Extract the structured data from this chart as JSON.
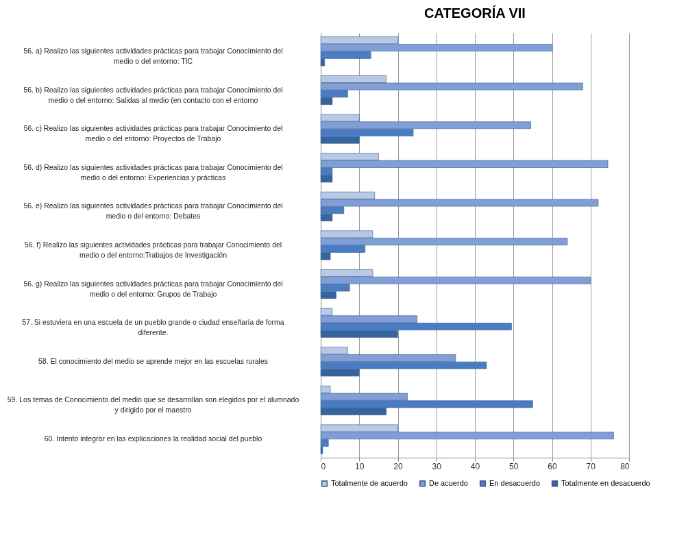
{
  "chart_data": {
    "type": "bar",
    "orientation": "horizontal",
    "title": "CATEGORÍA VII",
    "categories": [
      "56. a) Realizo las siguientes actividades prácticas para trabajar Conocimiento del medio o del entorno: TIC",
      "56. b) Realizo las siguientes actividades prácticas para trabajar Conocimiento del medio o del entorno: Salidas al medio (en contacto con el entorno",
      "56. c) Realizo las siguientes actividades prácticas para trabajar Conocimiento del medio o del entorno: Proyectos de Trabajo",
      "56. d) Realizo las siguientes actividades prácticas para trabajar Conocimiento del medio o del entorno: Experiencias y prácticas",
      "56. e) Realizo las siguientes actividades prácticas para trabajar Conocimiento del medio o del entorno: Debates",
      "56. f) Realizo las siguientes actividades prácticas para trabajar Conocimiento del medio o del entorno:Trabajos de Investigación",
      "56. g) Realizo las siguientes actividades prácticas para trabajar Conocimiento del medio o del entorno: Grupos de Trabajo",
      "57. Si estuviera en una escuela de un pueblo grande o ciudad enseñaría de forma diferente.",
      "58. El conocimiento del medio se aprende mejor en las escuelas rurales",
      "59. Los temas de Conocimiento del medio que se desarrollan son elegidos por el alumnado y dirigido por el maestro",
      "60. Intento integrar en las explicaciones la realidad social del pueblo"
    ],
    "series": [
      {
        "name": "Totalmente de acuerdo",
        "color": "#b8c9e6",
        "values": [
          20,
          17,
          10,
          15,
          14,
          13.5,
          13.5,
          3,
          7,
          2.5,
          20
        ]
      },
      {
        "name": "De acuerdo",
        "color": "#7f9fd6",
        "values": [
          60,
          68,
          54.5,
          74.5,
          72,
          64,
          70,
          25,
          35,
          22.5,
          76
        ]
      },
      {
        "name": "En desacuerdo",
        "color": "#4a7cc4",
        "values": [
          13,
          7,
          24,
          3,
          6,
          11.5,
          7.5,
          49.5,
          43,
          55,
          2
        ]
      },
      {
        "name": "Totalmente en desacuerdo",
        "color": "#35659f",
        "values": [
          1,
          3,
          10,
          3,
          3,
          2.5,
          4,
          20,
          10,
          17,
          0.5
        ]
      }
    ],
    "xlim": [
      0,
      80
    ],
    "xticks": [
      0,
      10,
      20,
      30,
      40,
      50,
      60,
      70,
      80
    ],
    "grid": "x",
    "legend": "bottom"
  }
}
